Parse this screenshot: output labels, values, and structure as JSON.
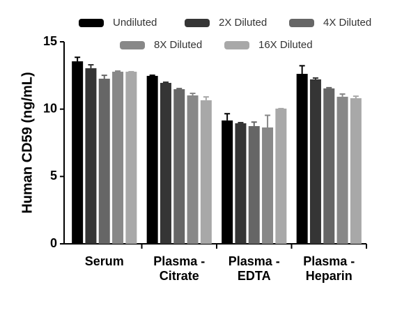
{
  "chart_data": {
    "type": "bar",
    "y_label": "Human CD59 (ng/mL)",
    "categories": [
      "Serum",
      "Plasma -\nCitrate",
      "Plasma -\nEDTA",
      "Plasma -\nHeparin"
    ],
    "series": [
      {
        "name": "Undiluted",
        "color": "#000000",
        "values": [
          13.55,
          12.47,
          9.16,
          12.62
        ],
        "errors": [
          0.3,
          0.05,
          0.5,
          0.6
        ]
      },
      {
        "name": "2X Diluted",
        "color": "#353535",
        "values": [
          13.04,
          11.95,
          8.95,
          12.21
        ],
        "errors": [
          0.25,
          0.05,
          0.05,
          0.1
        ]
      },
      {
        "name": "4X Diluted",
        "color": "#666666",
        "values": [
          12.26,
          11.48,
          8.74,
          11.54
        ],
        "errors": [
          0.25,
          0.05,
          0.3,
          0.05
        ]
      },
      {
        "name": "8X Diluted",
        "color": "#888888",
        "values": [
          12.78,
          11.02,
          8.64,
          10.92
        ],
        "errors": [
          0.05,
          0.15,
          0.9,
          0.2
        ]
      },
      {
        "name": "16X Diluted",
        "color": "#a8a8a8",
        "values": [
          12.78,
          10.66,
          10.04,
          10.81
        ],
        "errors": [
          0.0,
          0.25,
          0.0,
          0.15
        ]
      }
    ],
    "ylim": [
      0,
      15
    ],
    "yticks": [
      0,
      5,
      10,
      15
    ]
  }
}
